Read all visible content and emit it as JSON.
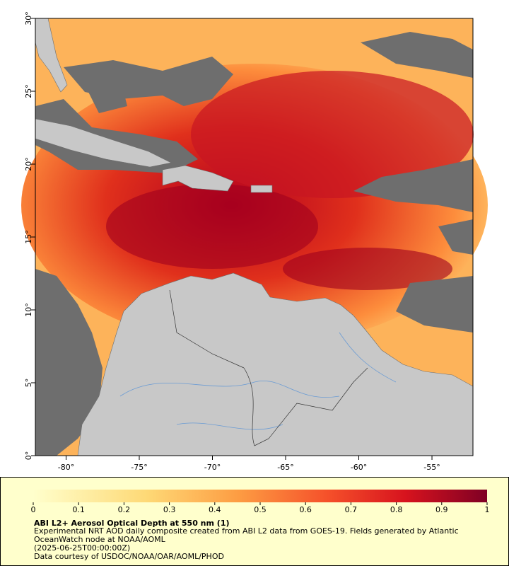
{
  "map": {
    "xlim": [
      -82.1,
      -52.2
    ],
    "ylim": [
      0,
      30
    ],
    "xticks": [
      {
        "value": -80,
        "label": "-80°"
      },
      {
        "value": -75,
        "label": "-75°"
      },
      {
        "value": -70,
        "label": "-70°"
      },
      {
        "value": -65,
        "label": "-65°"
      },
      {
        "value": -60,
        "label": "-60°"
      },
      {
        "value": -55,
        "label": "-55°"
      }
    ],
    "yticks": [
      {
        "value": 0,
        "label": "0°"
      },
      {
        "value": 5,
        "label": "5°"
      },
      {
        "value": 10,
        "label": "10°"
      },
      {
        "value": 15,
        "label": "15°"
      },
      {
        "value": 20,
        "label": "20°"
      },
      {
        "value": 25,
        "label": "25°"
      },
      {
        "value": 30,
        "label": "30°"
      }
    ]
  },
  "colorbar": {
    "lim": [
      0,
      1
    ],
    "ticks": [
      0,
      0.1,
      0.2,
      0.3,
      0.4,
      0.5,
      0.6,
      0.7,
      0.8,
      0.9,
      1
    ]
  },
  "caption": {
    "title": "ABI L2+ Aerosol Optical Depth at 550 nm (1)",
    "description": "Experimental NRT AOD daily composite created from ABI L2 data from GOES-19. Fields generated by Atlantic OceanWatch node at NOAA/AOML",
    "time": "(2025-06-25T00:00:00Z)",
    "credit": "Data courtesy of USDOC/NOAA/OAR/AOML/PHOD"
  }
}
